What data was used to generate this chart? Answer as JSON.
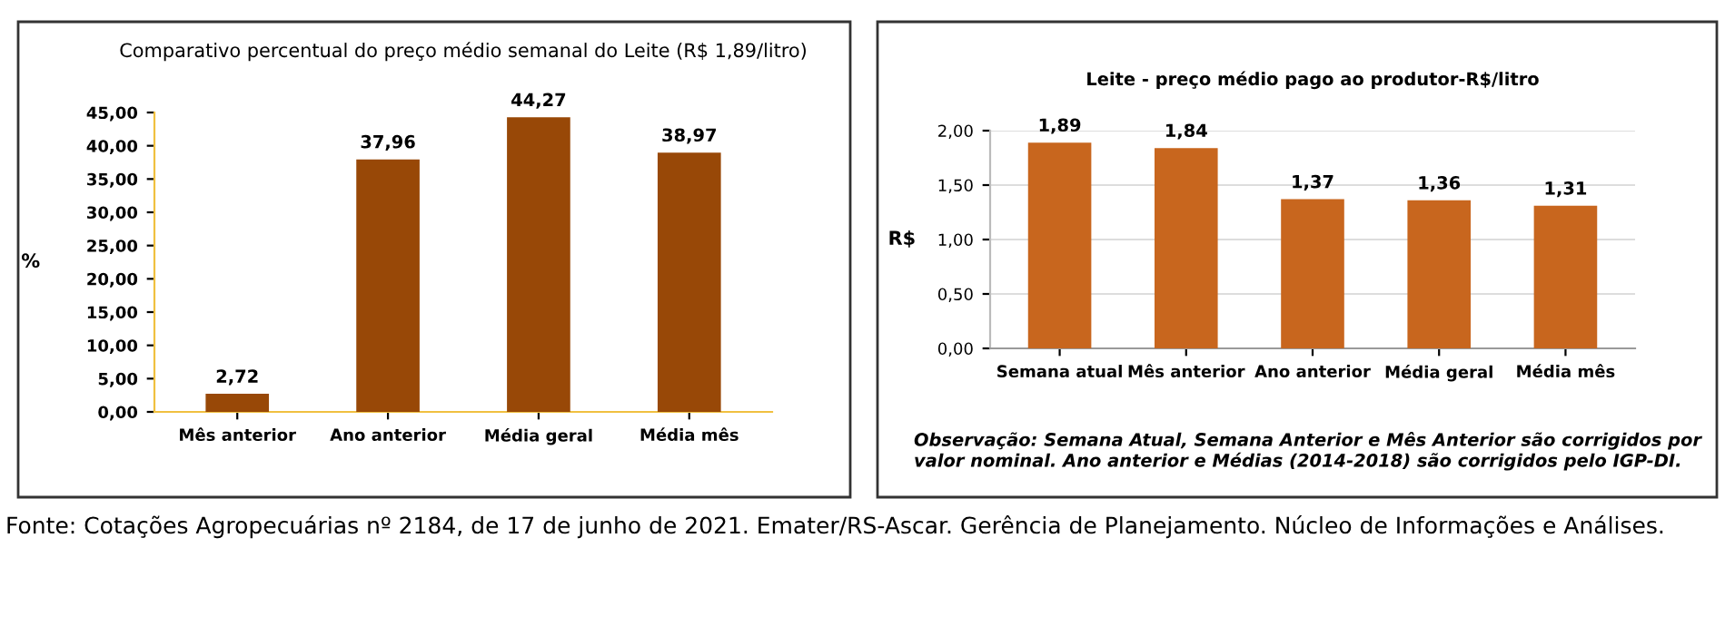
{
  "chart_data": [
    {
      "type": "bar",
      "title": "Comparativo percentual do preço médio semanal do Leite (R$ 1,89/litro)",
      "ylabel": "%",
      "categories": [
        "Mês anterior",
        "Ano anterior",
        "Média geral",
        "Média mês"
      ],
      "series": [
        {
          "color": "#984807",
          "values": [
            2.72,
            37.96,
            44.27,
            38.97
          ],
          "value_labels": [
            "2,72",
            "37,96",
            "44,27",
            "38,97"
          ]
        }
      ],
      "ylim": [
        0,
        45
      ],
      "yticks": [
        {
          "value": 0,
          "label": "0,00"
        },
        {
          "value": 5,
          "label": "5,00"
        },
        {
          "value": 10,
          "label": "10,00"
        },
        {
          "value": 15,
          "label": "15,00"
        },
        {
          "value": 20,
          "label": "20,00"
        },
        {
          "value": 25,
          "label": "25,00"
        },
        {
          "value": 30,
          "label": "30,00"
        },
        {
          "value": 35,
          "label": "35,00"
        },
        {
          "value": 40,
          "label": "40,00"
        },
        {
          "value": 45,
          "label": "45,00"
        }
      ],
      "grid": false
    },
    {
      "type": "bar",
      "title": "Leite - preço médio pago ao produtor-R$/litro",
      "ylabel": "R$",
      "categories": [
        "Semana atual",
        "Mês anterior",
        "Ano anterior",
        "Média geral",
        "Média mês"
      ],
      "series": [
        {
          "color": "#c8661e",
          "values": [
            1.89,
            1.84,
            1.37,
            1.36,
            1.31
          ],
          "value_labels": [
            "1,89",
            "1,84",
            "1,37",
            "1,36",
            "1,31"
          ]
        }
      ],
      "ylim": [
        0,
        2
      ],
      "yticks": [
        {
          "value": 0,
          "label": "0,00"
        },
        {
          "value": 0.5,
          "label": "0,50"
        },
        {
          "value": 1,
          "label": "1,00"
        },
        {
          "value": 1.5,
          "label": "1,50"
        },
        {
          "value": 2,
          "label": "2,00"
        }
      ],
      "grid": "y",
      "annotations": [
        "Observação: Semana Atual, Semana Anterior e Mês Anterior são corrigidos por valor nominal. Ano anterior e Médias (2014-2018) são corrigidos pelo IGP-DI.",
        "Fonte: Cotações Agropecuárias nº 2184, de 17 de junho de 2021. Emater/RS-Ascar. Gerência de Planejamento. Núcleo de Informações e Análises."
      ]
    }
  ]
}
